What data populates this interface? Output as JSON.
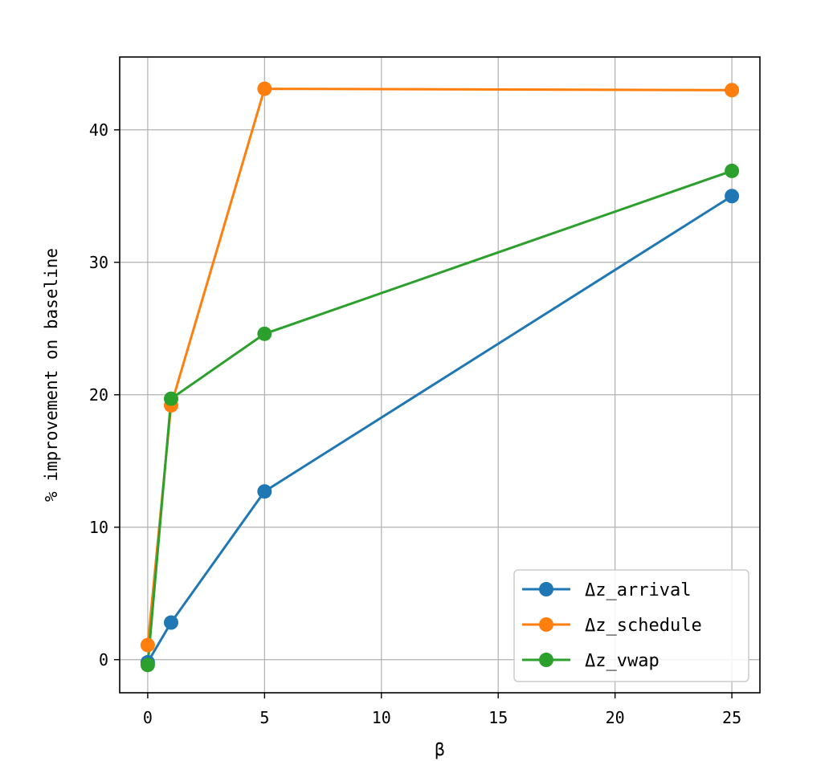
{
  "chart_data": {
    "type": "line",
    "title": "",
    "xlabel": "β",
    "ylabel": "% improvement on baseline",
    "xlim": [
      -1.2,
      26.2
    ],
    "ylim": [
      -2.5,
      45.5
    ],
    "xticks": [
      0,
      5,
      10,
      15,
      20,
      25
    ],
    "yticks": [
      0,
      10,
      20,
      30,
      40
    ],
    "grid": true,
    "legend_position": "bottom-right",
    "x": [
      0,
      1,
      5,
      25
    ],
    "series": [
      {
        "name": "Δz_arrival",
        "color": "#1f77b4",
        "values": [
          -0.2,
          2.8,
          12.7,
          35.0
        ]
      },
      {
        "name": "Δz_schedule",
        "color": "#ff7f0e",
        "values": [
          1.1,
          19.2,
          43.1,
          43.0
        ]
      },
      {
        "name": "Δz_vwap",
        "color": "#2ca02c",
        "values": [
          -0.4,
          19.7,
          24.6,
          36.9
        ]
      }
    ]
  }
}
